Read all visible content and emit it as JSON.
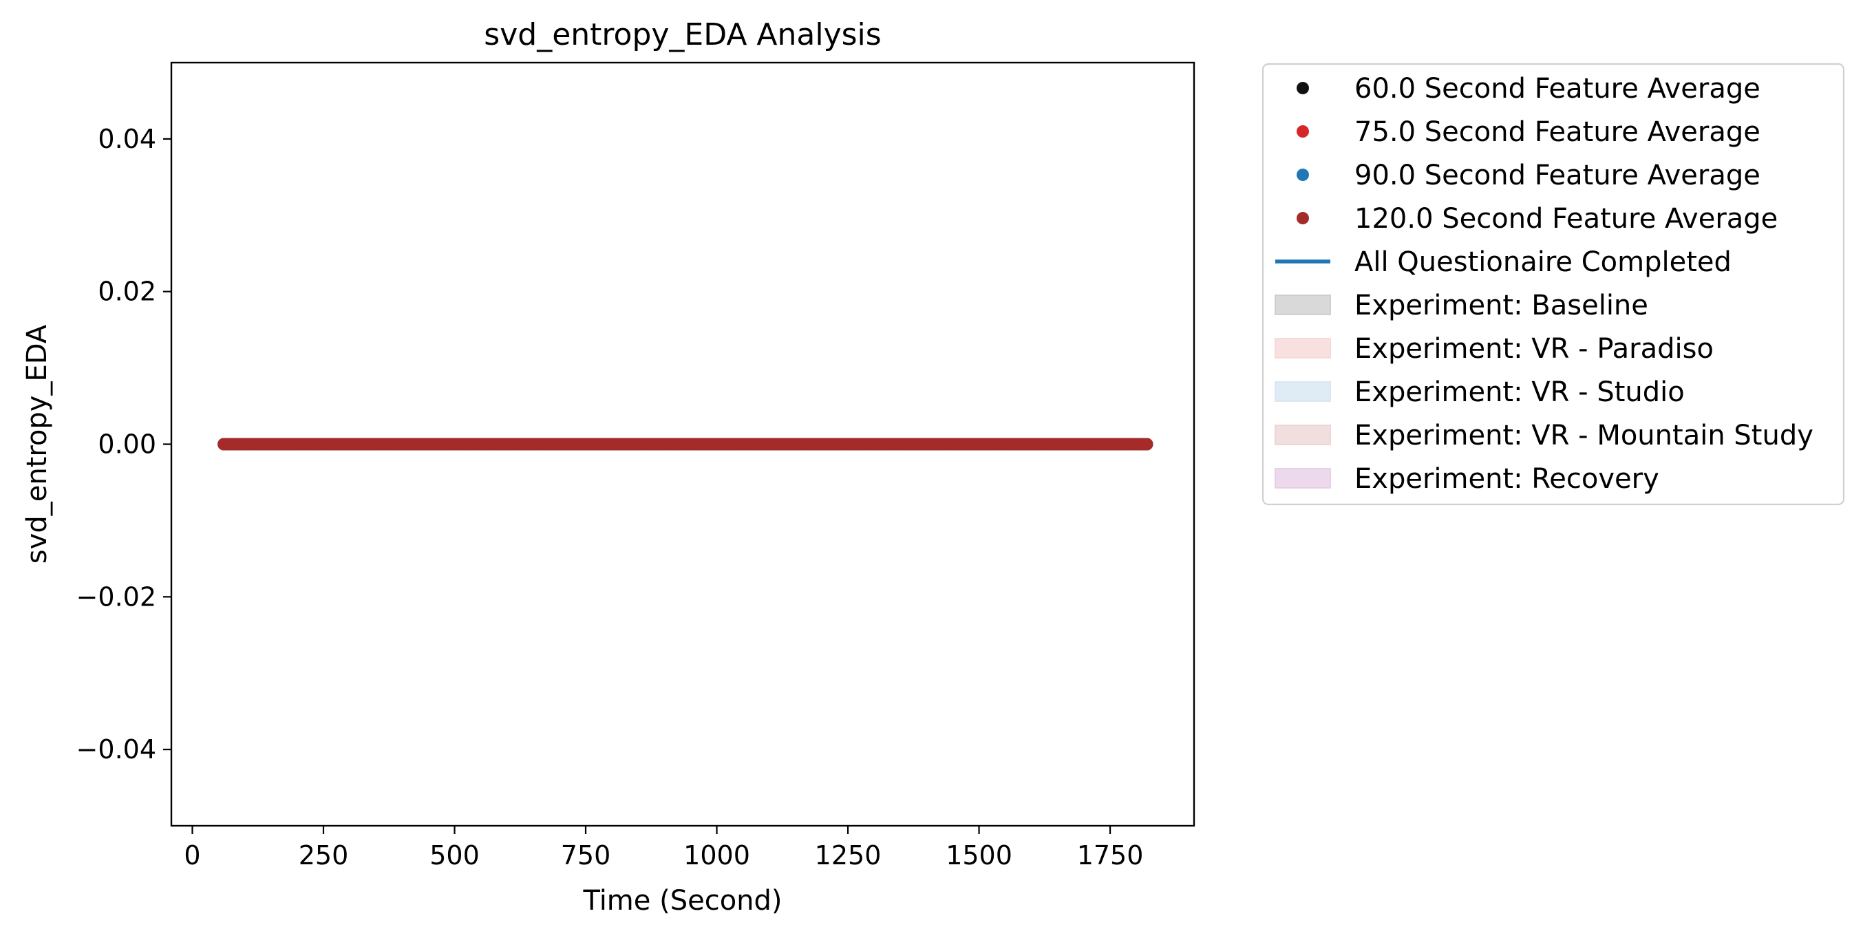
{
  "chart_data": {
    "type": "scatter",
    "title": "svd_entropy_EDA Analysis",
    "xlabel": "Time (Second)",
    "ylabel": "svd_entropy_EDA",
    "xlim": [
      -40,
      1910
    ],
    "ylim": [
      -0.05,
      0.05
    ],
    "x_ticks": [
      0,
      250,
      500,
      750,
      1000,
      1250,
      1500,
      1750
    ],
    "x_tick_labels": [
      "0",
      "250",
      "500",
      "750",
      "1000",
      "1250",
      "1500",
      "1750"
    ],
    "y_ticks": [
      0.04,
      0.02,
      0.0,
      -0.02,
      -0.04
    ],
    "y_tick_labels": [
      "0.04",
      "0.02",
      "0.00",
      "−0.02",
      "−0.04"
    ],
    "grid": false,
    "legend_placement": "outside-upper-right",
    "series": [
      {
        "name": "60.0 Second Feature Average",
        "kind": "scatter",
        "color": "#111111",
        "x_start": 60,
        "x_end": 1820,
        "x_step": 5,
        "y": 0.0
      },
      {
        "name": "75.0 Second Feature Average",
        "kind": "scatter",
        "color": "#d62728",
        "x_start": 60,
        "x_end": 1820,
        "x_step": 5,
        "y": 0.0
      },
      {
        "name": "90.0 Second Feature Average",
        "kind": "scatter",
        "color": "#1f77b4",
        "x_start": 60,
        "x_end": 1820,
        "x_step": 5,
        "y": 0.0
      },
      {
        "name": "120.0 Second Feature Average",
        "kind": "scatter",
        "color": "#a52a2a",
        "x_start": 60,
        "x_end": 1820,
        "x_step": 5,
        "y": 0.0
      }
    ],
    "legend": [
      {
        "label": "60.0 Second Feature Average",
        "marker": "dot",
        "color": "#111111"
      },
      {
        "label": "75.0 Second Feature Average",
        "marker": "dot",
        "color": "#d62728"
      },
      {
        "label": "90.0 Second Feature Average",
        "marker": "dot",
        "color": "#1f77b4"
      },
      {
        "label": "120.0 Second Feature Average",
        "marker": "dot",
        "color": "#a52a2a"
      },
      {
        "label": "All Questionaire Completed",
        "marker": "line",
        "color": "#1f77b4"
      },
      {
        "label": "Experiment: Baseline",
        "marker": "patch",
        "color": "#cccccc"
      },
      {
        "label": "Experiment: VR - Paradiso",
        "marker": "patch",
        "color": "#f6d6d6"
      },
      {
        "label": "Experiment: VR - Studio",
        "marker": "patch",
        "color": "#d6e6f2"
      },
      {
        "label": "Experiment: VR - Mountain Study",
        "marker": "patch",
        "color": "#ecd4d4"
      },
      {
        "label": "Experiment: Recovery",
        "marker": "patch",
        "color": "#e6cce6"
      }
    ]
  }
}
